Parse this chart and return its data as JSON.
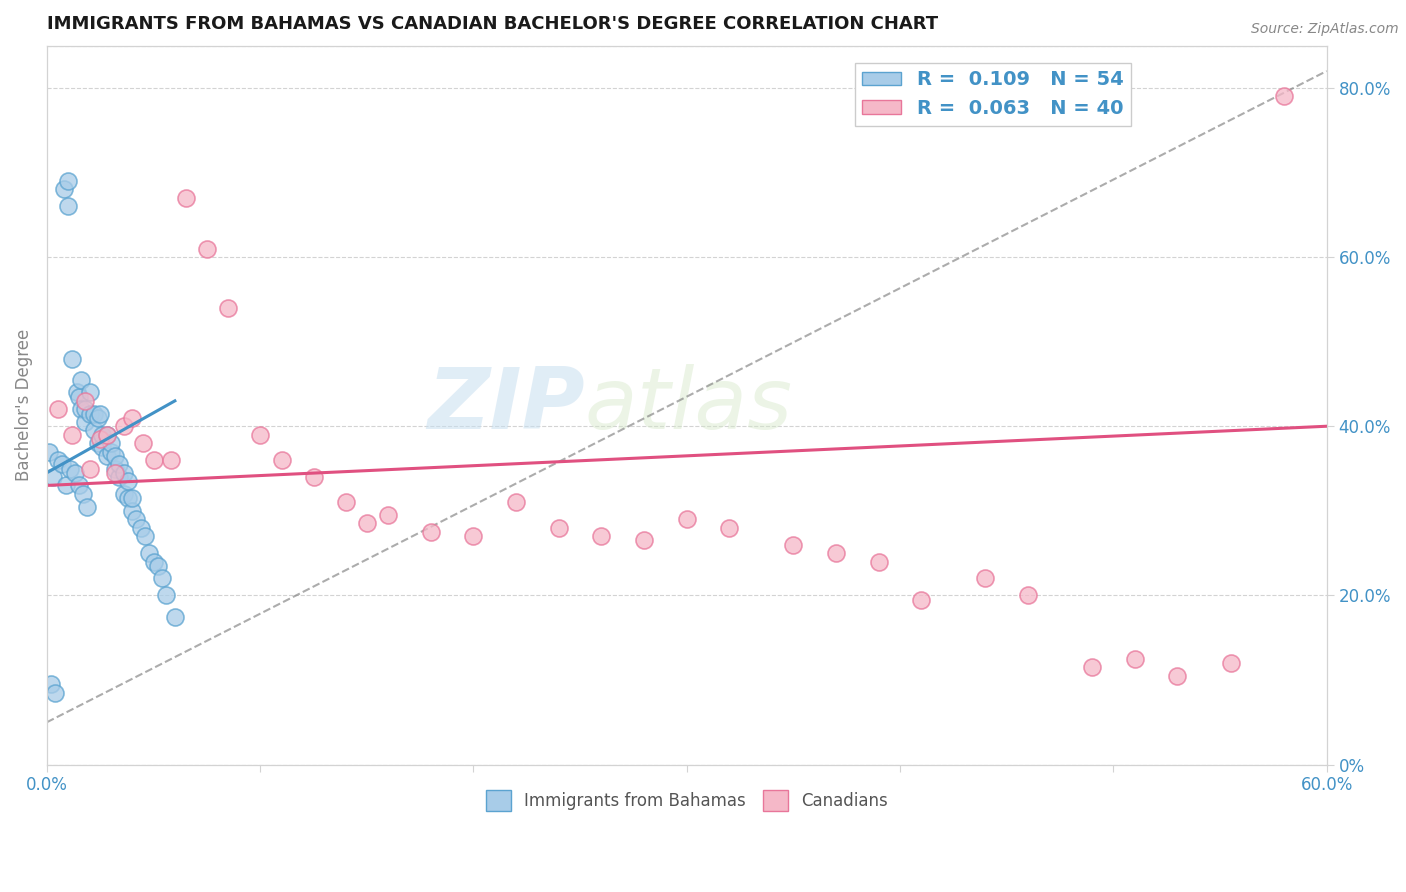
{
  "title": "IMMIGRANTS FROM BAHAMAS VS CANADIAN BACHELOR'S DEGREE CORRELATION CHART",
  "source": "Source: ZipAtlas.com",
  "ylabel": "Bachelor's Degree",
  "legend1_label": "R =  0.109   N = 54",
  "legend2_label": "R =  0.063   N = 40",
  "bottom_legend1": "Immigrants from Bahamas",
  "bottom_legend2": "Canadians",
  "blue_color": "#a8cce8",
  "blue_edge_color": "#5ba3d0",
  "pink_color": "#f5b8c8",
  "pink_edge_color": "#e8769a",
  "blue_line_color": "#4292c6",
  "pink_line_color": "#e05080",
  "watermark_zip": "ZIP",
  "watermark_atlas": "atlas",
  "xlim": [
    0.0,
    0.6
  ],
  "ylim": [
    0.0,
    0.85
  ],
  "blue_scatter_x": [
    0.002,
    0.004,
    0.008,
    0.01,
    0.01,
    0.012,
    0.014,
    0.015,
    0.016,
    0.016,
    0.018,
    0.018,
    0.02,
    0.02,
    0.022,
    0.022,
    0.024,
    0.024,
    0.025,
    0.026,
    0.026,
    0.028,
    0.028,
    0.03,
    0.03,
    0.032,
    0.032,
    0.034,
    0.034,
    0.036,
    0.036,
    0.038,
    0.038,
    0.04,
    0.04,
    0.042,
    0.044,
    0.046,
    0.048,
    0.05,
    0.052,
    0.054,
    0.056,
    0.06,
    0.001,
    0.003,
    0.005,
    0.007,
    0.009,
    0.011,
    0.013,
    0.015,
    0.017,
    0.019
  ],
  "blue_scatter_y": [
    0.095,
    0.085,
    0.68,
    0.69,
    0.66,
    0.48,
    0.44,
    0.435,
    0.42,
    0.455,
    0.405,
    0.42,
    0.415,
    0.44,
    0.395,
    0.415,
    0.38,
    0.41,
    0.415,
    0.375,
    0.39,
    0.365,
    0.39,
    0.37,
    0.38,
    0.35,
    0.365,
    0.34,
    0.355,
    0.32,
    0.345,
    0.315,
    0.335,
    0.3,
    0.315,
    0.29,
    0.28,
    0.27,
    0.25,
    0.24,
    0.235,
    0.22,
    0.2,
    0.175,
    0.37,
    0.34,
    0.36,
    0.355,
    0.33,
    0.35,
    0.345,
    0.33,
    0.32,
    0.305
  ],
  "pink_scatter_x": [
    0.005,
    0.012,
    0.018,
    0.02,
    0.025,
    0.028,
    0.032,
    0.036,
    0.04,
    0.045,
    0.05,
    0.058,
    0.065,
    0.075,
    0.085,
    0.1,
    0.11,
    0.125,
    0.14,
    0.15,
    0.16,
    0.18,
    0.2,
    0.22,
    0.24,
    0.26,
    0.28,
    0.3,
    0.32,
    0.35,
    0.37,
    0.39,
    0.41,
    0.44,
    0.46,
    0.49,
    0.51,
    0.53,
    0.555,
    0.58
  ],
  "pink_scatter_y": [
    0.42,
    0.39,
    0.43,
    0.35,
    0.385,
    0.39,
    0.345,
    0.4,
    0.41,
    0.38,
    0.36,
    0.36,
    0.67,
    0.61,
    0.54,
    0.39,
    0.36,
    0.34,
    0.31,
    0.285,
    0.295,
    0.275,
    0.27,
    0.31,
    0.28,
    0.27,
    0.265,
    0.29,
    0.28,
    0.26,
    0.25,
    0.24,
    0.195,
    0.22,
    0.2,
    0.115,
    0.125,
    0.105,
    0.12,
    0.79
  ],
  "blue_trendline_x": [
    0.0,
    0.06
  ],
  "blue_trendline_y": [
    0.345,
    0.43
  ],
  "pink_trendline_x": [
    0.0,
    0.6
  ],
  "pink_trendline_y": [
    0.33,
    0.4
  ],
  "dash_trendline_x": [
    0.0,
    0.6
  ],
  "dash_trendline_y": [
    0.05,
    0.82
  ]
}
